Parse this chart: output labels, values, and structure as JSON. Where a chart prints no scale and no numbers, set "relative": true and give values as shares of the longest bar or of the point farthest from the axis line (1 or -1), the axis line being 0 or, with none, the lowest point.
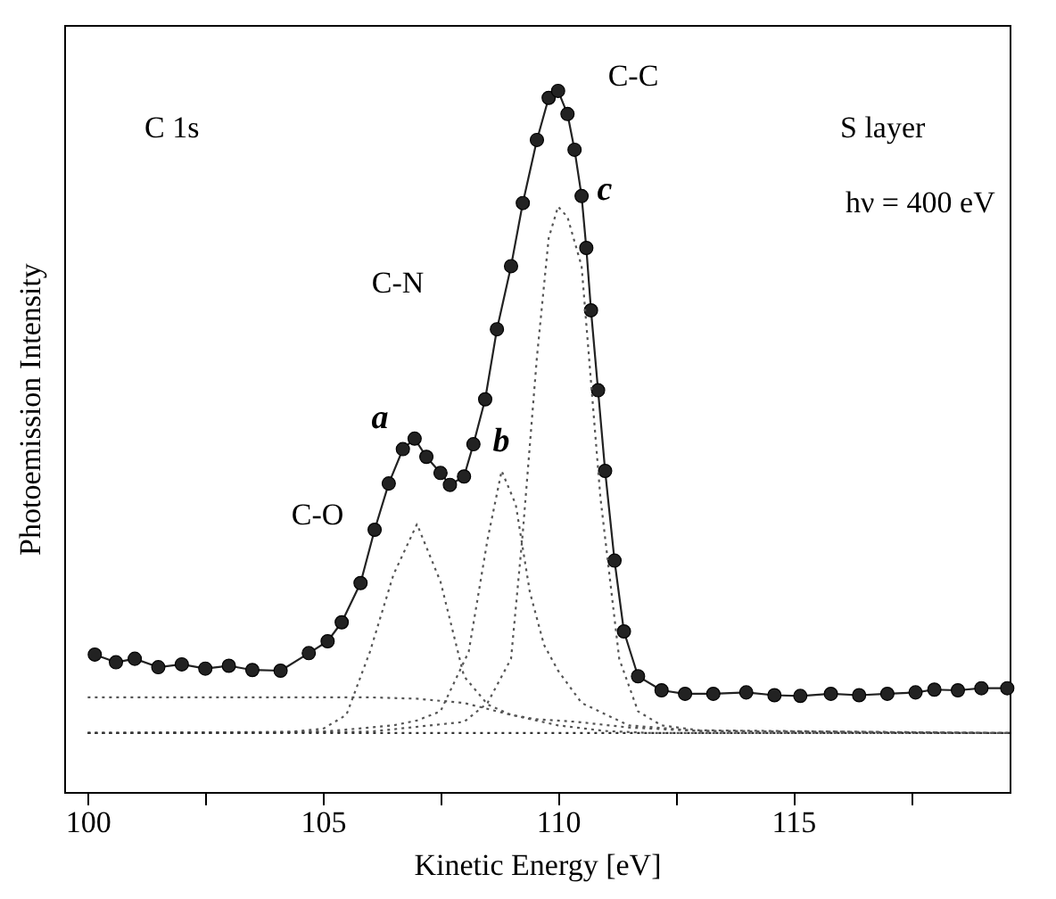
{
  "chart_data": {
    "type": "line",
    "relative": true,
    "xlabel": "Kinetic Energy [eV]",
    "ylabel": "Photoemission Intensity",
    "xlim": [
      99.5,
      119.6
    ],
    "xticks": [
      100,
      {
        "value": 102.5,
        "label": null
      },
      105,
      {
        "value": 107.5,
        "label": null
      },
      110,
      {
        "value": 112.5,
        "label": null
      },
      115,
      {
        "value": 117.5,
        "label": null
      }
    ],
    "annotations": [
      "C 1s",
      "S layer",
      "hν = 400 eV",
      "C-C",
      "c",
      "C-N",
      "a",
      "b",
      "C-O"
    ],
    "series": [
      {
        "marker": "circle",
        "line_style": "solid",
        "color": "#222222",
        "x": [
          100.15,
          100.6,
          101.0,
          101.5,
          102.0,
          102.5,
          103.0,
          103.5,
          104.1,
          104.7,
          105.1,
          105.4,
          105.8,
          106.1,
          106.4,
          106.7,
          106.95,
          107.2,
          107.5,
          107.7,
          108.0,
          108.2,
          108.45,
          108.7,
          109.0,
          109.25,
          109.55,
          109.8,
          110.0,
          110.2,
          110.35,
          110.5,
          110.6,
          110.7,
          110.85,
          111.0,
          111.2,
          111.4,
          111.7,
          112.2,
          112.7,
          113.3,
          114.0,
          114.6,
          115.15,
          115.8,
          116.4,
          117.0,
          117.6,
          118.0,
          118.5,
          119.0,
          119.55
        ],
        "values": [
          0.196,
          0.185,
          0.19,
          0.178,
          0.182,
          0.176,
          0.18,
          0.174,
          0.173,
          0.198,
          0.215,
          0.242,
          0.298,
          0.374,
          0.44,
          0.489,
          0.504,
          0.478,
          0.455,
          0.438,
          0.45,
          0.496,
          0.56,
          0.66,
          0.75,
          0.84,
          0.93,
          0.99,
          1.0,
          0.967,
          0.916,
          0.85,
          0.776,
          0.687,
          0.573,
          0.458,
          0.33,
          0.229,
          0.165,
          0.145,
          0.14,
          0.14,
          0.142,
          0.138,
          0.137,
          0.14,
          0.138,
          0.14,
          0.142,
          0.146,
          0.145,
          0.148,
          0.148
        ]
      },
      {
        "marker": "none",
        "line_style": "dotted",
        "color": "#555555",
        "x": [
          100.0,
          104.0,
          105.0,
          105.5,
          106.0,
          106.5,
          107.0,
          107.5,
          108.0,
          108.5,
          109.0,
          109.5,
          110.4,
          111.5,
          113.0,
          119.6
        ],
        "values": [
          0.084,
          0.084,
          0.09,
          0.11,
          0.2,
          0.31,
          0.382,
          0.3,
          0.165,
          0.125,
          0.11,
          0.104,
          0.1,
          0.092,
          0.087,
          0.084
        ]
      },
      {
        "marker": "none",
        "line_style": "dotted",
        "color": "#555555",
        "x": [
          100.0,
          105.0,
          106.5,
          107.0,
          107.5,
          108.1,
          108.5,
          108.8,
          109.1,
          109.4,
          109.7,
          110.0,
          110.5,
          111.5,
          113.0,
          119.6
        ],
        "values": [
          0.084,
          0.086,
          0.095,
          0.102,
          0.115,
          0.2,
          0.36,
          0.458,
          0.41,
          0.285,
          0.21,
          0.173,
          0.127,
          0.095,
          0.087,
          0.084
        ]
      },
      {
        "marker": "none",
        "line_style": "dotted",
        "color": "#555555",
        "x": [
          100.0,
          106.0,
          108.0,
          108.5,
          109.0,
          109.25,
          109.55,
          109.8,
          110.0,
          110.2,
          110.5,
          110.9,
          111.3,
          111.7,
          112.2,
          113.0,
          119.6
        ],
        "values": [
          0.084,
          0.086,
          0.1,
          0.127,
          0.19,
          0.37,
          0.62,
          0.79,
          0.835,
          0.82,
          0.75,
          0.42,
          0.19,
          0.115,
          0.095,
          0.088,
          0.084
        ]
      },
      {
        "marker": "none",
        "line_style": "dotted",
        "color": "#555555",
        "x": [
          100.0,
          106.0,
          107.0,
          108.0,
          109.0,
          110.0,
          111.0,
          112.0,
          119.6
        ],
        "values": [
          0.135,
          0.135,
          0.133,
          0.127,
          0.11,
          0.095,
          0.087,
          0.084,
          0.084
        ]
      },
      {
        "marker": "none",
        "line_style": "dotted",
        "color": "#333333",
        "x": [
          100.0,
          119.6
        ],
        "values": [
          0.084,
          0.084
        ]
      }
    ]
  }
}
